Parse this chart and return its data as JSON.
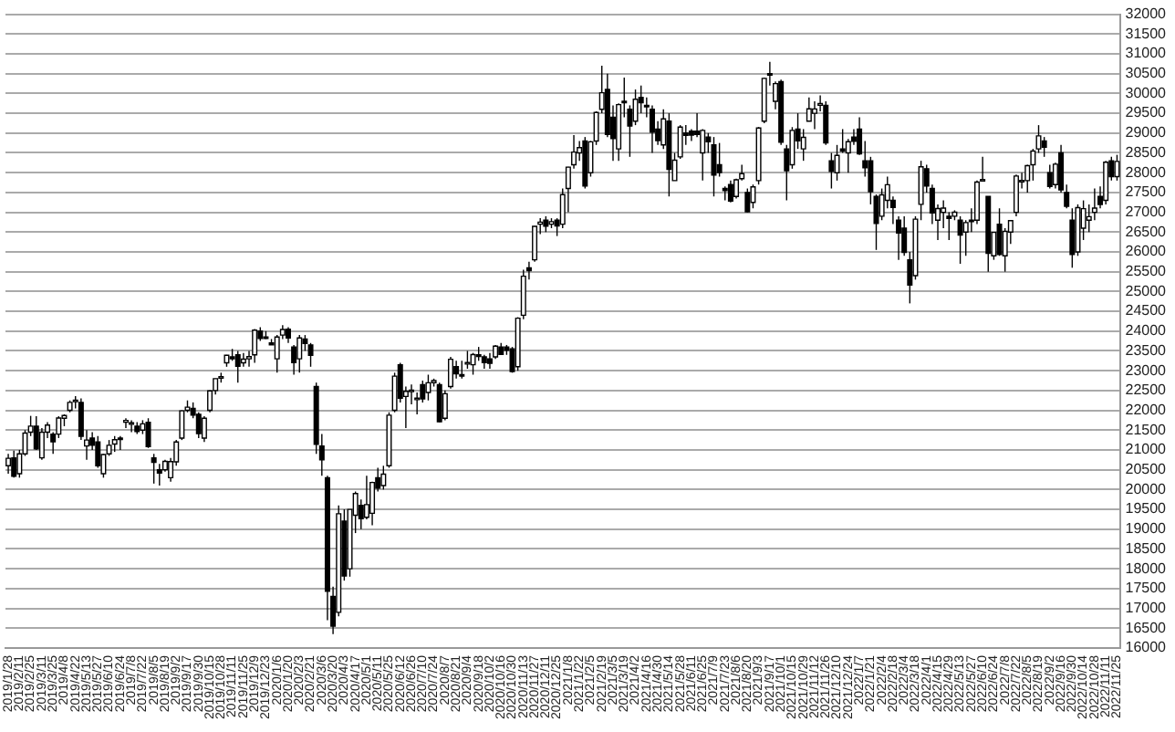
{
  "chart_data": {
    "type": "candlestick",
    "grid": "y",
    "ylim": [
      16000,
      32000
    ],
    "yticks": [
      16000,
      16500,
      17000,
      17500,
      18000,
      18500,
      19000,
      19500,
      20000,
      20500,
      21000,
      21500,
      22000,
      22500,
      23000,
      23500,
      24000,
      24500,
      25000,
      25500,
      26000,
      26500,
      27000,
      27500,
      28000,
      28500,
      29000,
      29500,
      30000,
      30500,
      31000,
      31500,
      32000
    ],
    "categories": [
      "2019/1/28",
      null,
      "2019/2/11",
      null,
      "2019/2/25",
      null,
      "2019/3/11",
      null,
      "2019/3/25",
      null,
      "2019/4/8",
      null,
      "2019/4/22",
      null,
      "2019/5/13",
      null,
      "2019/5/27",
      null,
      "2019/6/10",
      null,
      "2019/6/24",
      null,
      "2019/7/8",
      null,
      "2019/7/22",
      null,
      "2019/8/5",
      null,
      "2019/8/19",
      null,
      "2019/9/2",
      null,
      "2019/9/17",
      null,
      "2019/9/30",
      null,
      "2019/10/15",
      null,
      "2019/10/28",
      null,
      "2019/11/11",
      null,
      "2019/11/25",
      null,
      "2019/12/9",
      null,
      "2019/12/23",
      null,
      "2020/1/6",
      null,
      "2020/1/20",
      null,
      "2020/2/3",
      null,
      "2020/2/21",
      null,
      "2020/3/6",
      null,
      "2020/3/20",
      null,
      "2020/4/3",
      null,
      "2020/4/17",
      null,
      "2020/5/1",
      null,
      "2020/5/11",
      null,
      "2020/5/25",
      null,
      "2020/6/12",
      null,
      "2020/6/26",
      null,
      "2020/7/10",
      null,
      "2020/7/24",
      null,
      "2020/8/7",
      null,
      "2020/8/21",
      null,
      "2020/9/4",
      null,
      "2020/9/18",
      null,
      "2020/10/2",
      null,
      "2020/10/16",
      null,
      "2020/10/30",
      null,
      "2020/11/13",
      null,
      "2020/11/27",
      null,
      "2020/12/11",
      null,
      "2020/12/25",
      null,
      "2021/1/8",
      null,
      "2021/1/22",
      null,
      "2021/2/5",
      null,
      "2021/2/19",
      null,
      "2021/3/5",
      null,
      "2021/3/19",
      null,
      "2021/4/2",
      null,
      "2021/4/16",
      null,
      "2021/4/30",
      null,
      "2021/5/14",
      null,
      "2021/5/28",
      null,
      "2021/6/11",
      null,
      "2021/6/25",
      null,
      "2021/7/9",
      null,
      "2021/7/23",
      null,
      "2021/8/6",
      null,
      "2021/8/20",
      null,
      "2021/9/3",
      null,
      "2021/9/17",
      null,
      "2021/10/1",
      null,
      "2021/10/15",
      null,
      "2021/10/29",
      null,
      "2021/11/12",
      null,
      "2021/11/26",
      null,
      "2021/12/10",
      null,
      "2021/12/24",
      null,
      "2022/1/7",
      null,
      "2022/1/21",
      null,
      "2022/2/4",
      null,
      "2022/2/18",
      null,
      "2022/3/4",
      null,
      "2022/3/18",
      null,
      "2022/4/1",
      null,
      "2022/4/15",
      null,
      "2022/4/29",
      null,
      "2022/5/13",
      null,
      "2022/5/27",
      null,
      "2022/6/10",
      null,
      "2022/6/24",
      null,
      "2022/7/8",
      null,
      "2022/7/22",
      null,
      "2022/8/5",
      null,
      "2022/8/19",
      null,
      "2022/9/2",
      null,
      "2022/9/16",
      null,
      "2022/9/30",
      null,
      "2022/10/14",
      null,
      "2022/10/28",
      null,
      "2022/11/11",
      null,
      "2022/11/25"
    ],
    "ohlc": [
      [
        20600,
        20900,
        20400,
        20788
      ],
      [
        20800,
        20980,
        20300,
        20333
      ],
      [
        20400,
        21000,
        20300,
        20900
      ],
      [
        20900,
        21500,
        20850,
        21425
      ],
      [
        21450,
        21860,
        21350,
        21602
      ],
      [
        21600,
        21850,
        21000,
        21025
      ],
      [
        20800,
        21550,
        20750,
        21450
      ],
      [
        21450,
        21700,
        21300,
        21627
      ],
      [
        21400,
        21450,
        20900,
        21205
      ],
      [
        21400,
        21850,
        21300,
        21807
      ],
      [
        21800,
        21900,
        21600,
        21870
      ],
      [
        22000,
        22250,
        21950,
        22200
      ],
      [
        22250,
        22360,
        22050,
        22258
      ],
      [
        22200,
        22300,
        21250,
        21344
      ],
      [
        21100,
        21500,
        20750,
        21250
      ],
      [
        21300,
        21450,
        21000,
        21117
      ],
      [
        21200,
        21350,
        20550,
        20601
      ],
      [
        20400,
        20900,
        20300,
        20884
      ],
      [
        20900,
        21250,
        20850,
        21116
      ],
      [
        21150,
        21350,
        20950,
        21258
      ],
      [
        21300,
        21350,
        21000,
        21275
      ],
      [
        21700,
        21800,
        21550,
        21746
      ],
      [
        21650,
        21750,
        21450,
        21685
      ],
      [
        21600,
        21700,
        21400,
        21467
      ],
      [
        21500,
        21750,
        21400,
        21658
      ],
      [
        21700,
        21800,
        21050,
        21087
      ],
      [
        20800,
        20900,
        20150,
        20684
      ],
      [
        20500,
        20650,
        20100,
        20418
      ],
      [
        20500,
        20750,
        20450,
        20710
      ],
      [
        20300,
        20800,
        20200,
        20704
      ],
      [
        20700,
        21250,
        20600,
        21200
      ],
      [
        21300,
        22000,
        21250,
        21988
      ],
      [
        22000,
        22250,
        21950,
        22079
      ],
      [
        22050,
        22200,
        21800,
        21879
      ],
      [
        21900,
        21950,
        21300,
        21410
      ],
      [
        21300,
        21850,
        21200,
        21798
      ],
      [
        22000,
        22500,
        21950,
        22492
      ],
      [
        22500,
        22800,
        22400,
        22799
      ],
      [
        22850,
        22950,
        22700,
        22850
      ],
      [
        23200,
        23400,
        23100,
        23391
      ],
      [
        23350,
        23550,
        23250,
        23303
      ],
      [
        23400,
        23500,
        22700,
        23113
      ],
      [
        23200,
        23450,
        23100,
        23293
      ],
      [
        23300,
        23500,
        23100,
        23354
      ],
      [
        23400,
        24050,
        23200,
        24023
      ],
      [
        24000,
        24100,
        23750,
        23816
      ],
      [
        23850,
        24000,
        23800,
        23837
      ],
      [
        23700,
        23800,
        23650,
        23656
      ],
      [
        23300,
        23900,
        22950,
        23850
      ],
      [
        23900,
        24150,
        23800,
        24041
      ],
      [
        24050,
        24100,
        23700,
        23827
      ],
      [
        23600,
        23650,
        22900,
        23205
      ],
      [
        23300,
        23900,
        22950,
        23827
      ],
      [
        23800,
        23900,
        23500,
        23687
      ],
      [
        23650,
        23700,
        23100,
        23386
      ],
      [
        22600,
        22700,
        20900,
        21142
      ],
      [
        21100,
        21400,
        20350,
        20749
      ],
      [
        20300,
        20350,
        16700,
        17431
      ],
      [
        17300,
        17550,
        16350,
        16552
      ],
      [
        16900,
        19600,
        16800,
        19389
      ],
      [
        19200,
        19500,
        17700,
        17820
      ],
      [
        18000,
        19500,
        17800,
        19498
      ],
      [
        19350,
        19950,
        18900,
        19897
      ],
      [
        19600,
        19750,
        19000,
        19262
      ],
      [
        19300,
        20350,
        19250,
        19619
      ],
      [
        19400,
        20200,
        19100,
        20179
      ],
      [
        20300,
        20550,
        19950,
        20037
      ],
      [
        20100,
        20600,
        20000,
        20388
      ],
      [
        20600,
        21950,
        20550,
        21877
      ],
      [
        22000,
        22950,
        21950,
        22863
      ],
      [
        23150,
        23200,
        22200,
        22305
      ],
      [
        22350,
        22600,
        21550,
        22478
      ],
      [
        22500,
        22650,
        22150,
        22512
      ],
      [
        22300,
        22450,
        21900,
        22306
      ],
      [
        22650,
        22750,
        22200,
        22290
      ],
      [
        22450,
        22900,
        22250,
        22696
      ],
      [
        22700,
        22800,
        22600,
        22751
      ],
      [
        22650,
        22700,
        21700,
        21710
      ],
      [
        21800,
        22500,
        21750,
        22418
      ],
      [
        22600,
        23350,
        22550,
        23289
      ],
      [
        23100,
        23250,
        22800,
        22920
      ],
      [
        22900,
        23250,
        22800,
        22882
      ],
      [
        23200,
        23500,
        23050,
        23205
      ],
      [
        23150,
        23450,
        22900,
        23406
      ],
      [
        23400,
        23600,
        23250,
        23360
      ],
      [
        23350,
        23400,
        23050,
        23204
      ],
      [
        23300,
        23450,
        23050,
        23185
      ],
      [
        23350,
        23650,
        23300,
        23619
      ],
      [
        23600,
        23700,
        23400,
        23410
      ],
      [
        23600,
        23650,
        23400,
        23516
      ],
      [
        23550,
        23600,
        22950,
        22977
      ],
      [
        23100,
        24350,
        23000,
        24325
      ],
      [
        24400,
        25550,
        24300,
        25385
      ],
      [
        25600,
        25750,
        25300,
        25527
      ],
      [
        25800,
        26650,
        25750,
        26644
      ],
      [
        26700,
        26850,
        26450,
        26751
      ],
      [
        26800,
        26900,
        26500,
        26652
      ],
      [
        26700,
        26850,
        26600,
        26763
      ],
      [
        26800,
        26850,
        26400,
        26656
      ],
      [
        26700,
        27600,
        26600,
        27444
      ],
      [
        27600,
        28150,
        27000,
        28139
      ],
      [
        28200,
        28950,
        28100,
        28519
      ],
      [
        28500,
        28800,
        28300,
        28631
      ],
      [
        28800,
        28900,
        27600,
        27663
      ],
      [
        28000,
        28800,
        27900,
        28779
      ],
      [
        28800,
        29550,
        28700,
        29520
      ],
      [
        29600,
        30700,
        29500,
        30018
      ],
      [
        30100,
        30500,
        28900,
        28966
      ],
      [
        29400,
        29700,
        28300,
        28864
      ],
      [
        28600,
        29750,
        28300,
        29717
      ],
      [
        29800,
        30400,
        29400,
        29792
      ],
      [
        29600,
        29700,
        28400,
        29176
      ],
      [
        29300,
        30100,
        29200,
        29854
      ],
      [
        29900,
        30200,
        29500,
        29768
      ],
      [
        29700,
        29900,
        29400,
        29683
      ],
      [
        29600,
        29700,
        28500,
        29020
      ],
      [
        29100,
        29300,
        28700,
        28812
      ],
      [
        28700,
        29600,
        28600,
        29357
      ],
      [
        29300,
        29500,
        27400,
        28084
      ],
      [
        27800,
        28500,
        27800,
        28317
      ],
      [
        28400,
        29200,
        28350,
        29149
      ],
      [
        29000,
        29200,
        28700,
        28941
      ],
      [
        29050,
        29100,
        28800,
        28948
      ],
      [
        29050,
        29500,
        28900,
        28964
      ],
      [
        28500,
        29100,
        27800,
        29066
      ],
      [
        28900,
        29000,
        28500,
        28783
      ],
      [
        28700,
        28900,
        27400,
        27940
      ],
      [
        28200,
        28750,
        27900,
        28003
      ],
      [
        27600,
        27650,
        27300,
        27548
      ],
      [
        27700,
        27800,
        27250,
        27283
      ],
      [
        27400,
        27850,
        27350,
        27820
      ],
      [
        27850,
        28200,
        27800,
        27977
      ],
      [
        27500,
        27600,
        27000,
        27013
      ],
      [
        27250,
        27700,
        27100,
        27641
      ],
      [
        27800,
        29150,
        27700,
        29128
      ],
      [
        29300,
        30400,
        29250,
        30381
      ],
      [
        30500,
        30800,
        30200,
        30500
      ],
      [
        29800,
        30300,
        29600,
        30249
      ],
      [
        30300,
        30350,
        28700,
        28771
      ],
      [
        28600,
        28700,
        27300,
        28048
      ],
      [
        28200,
        29150,
        28100,
        29068
      ],
      [
        29100,
        29500,
        28600,
        28804
      ],
      [
        28600,
        29100,
        28300,
        28892
      ],
      [
        29300,
        29900,
        29300,
        29611
      ],
      [
        29500,
        29800,
        29100,
        29609
      ],
      [
        29700,
        29950,
        29550,
        29745
      ],
      [
        29700,
        29800,
        28700,
        28751
      ],
      [
        28300,
        28500,
        27600,
        28029
      ],
      [
        28000,
        28700,
        27800,
        28437
      ],
      [
        28600,
        29100,
        28500,
        28545
      ],
      [
        28500,
        28850,
        28000,
        28782
      ],
      [
        28900,
        29100,
        28700,
        28791
      ],
      [
        29100,
        29400,
        28450,
        28478
      ],
      [
        28300,
        28800,
        27900,
        28124
      ],
      [
        28300,
        28400,
        27200,
        27522
      ],
      [
        27400,
        27450,
        26050,
        26717
      ],
      [
        26900,
        27600,
        26800,
        27439
      ],
      [
        27300,
        27900,
        27100,
        27696
      ],
      [
        27300,
        27400,
        26700,
        27122
      ],
      [
        26800,
        26900,
        25800,
        26476
      ],
      [
        26600,
        26900,
        25900,
        25985
      ],
      [
        25800,
        26000,
        24700,
        25162
      ],
      [
        25400,
        26900,
        25300,
        26827
      ],
      [
        27200,
        28300,
        26800,
        28149
      ],
      [
        28100,
        28200,
        27500,
        27665
      ],
      [
        27600,
        27700,
        26700,
        26985
      ],
      [
        26800,
        27200,
        26300,
        27093
      ],
      [
        27000,
        27300,
        26600,
        27105
      ],
      [
        26900,
        27000,
        26300,
        26847
      ],
      [
        26900,
        27050,
        26800,
        27003
      ],
      [
        26800,
        26900,
        25700,
        26427
      ],
      [
        26500,
        26800,
        25900,
        26739
      ],
      [
        26800,
        27100,
        26500,
        26781
      ],
      [
        26800,
        27800,
        26700,
        27761
      ],
      [
        27800,
        28400,
        27800,
        27824
      ],
      [
        27400,
        27400,
        25500,
        25963
      ],
      [
        25900,
        26500,
        25800,
        26491
      ],
      [
        26700,
        27100,
        25900,
        25935
      ],
      [
        25900,
        26600,
        25500,
        26517
      ],
      [
        26500,
        26800,
        26200,
        26788
      ],
      [
        27000,
        27950,
        26900,
        27914
      ],
      [
        27800,
        28000,
        27600,
        27801
      ],
      [
        27800,
        28200,
        27500,
        28176
      ],
      [
        28200,
        28600,
        27800,
        28546
      ],
      [
        28600,
        29200,
        28500,
        28930
      ],
      [
        28800,
        28900,
        28400,
        28641
      ],
      [
        28000,
        28200,
        27600,
        27650
      ],
      [
        27700,
        28250,
        27600,
        28214
      ],
      [
        28500,
        28700,
        27500,
        27567
      ],
      [
        27500,
        27700,
        27100,
        27153
      ],
      [
        26800,
        27100,
        25600,
        25937
      ],
      [
        26000,
        27200,
        25900,
        27116
      ],
      [
        26600,
        27300,
        26300,
        27090
      ],
      [
        26800,
        27200,
        26500,
        26890
      ],
      [
        27000,
        27600,
        26800,
        27105
      ],
      [
        27400,
        27650,
        27100,
        27199
      ],
      [
        27300,
        28300,
        27200,
        28263
      ],
      [
        28300,
        28400,
        27800,
        27899
      ],
      [
        27900,
        28450,
        27800,
        28283
      ]
    ]
  }
}
